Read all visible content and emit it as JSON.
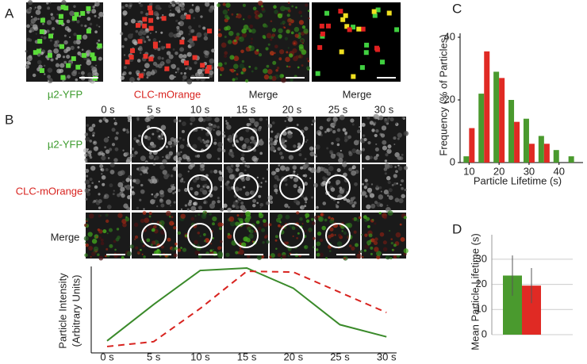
{
  "panel_labels": [
    "A",
    "B",
    "C",
    "D"
  ],
  "panel_a": {
    "labels": [
      "µ2-YFP",
      "CLC-mOrange",
      "Merge",
      "Merge"
    ]
  },
  "panel_b": {
    "times": [
      "0 s",
      "5 s",
      "10 s",
      "15 s",
      "20 s",
      "25 s",
      "30 s"
    ],
    "rows": [
      "µ2-YFP",
      "CLC-mOrange",
      "Merge"
    ]
  },
  "chart_data": [
    {
      "type": "line",
      "ylabel": [
        "Particle Intensity",
        "(Arbitrary Units)"
      ],
      "categories": [
        "0 s",
        "5 s",
        "10 s",
        "15 s",
        "20 s",
        "25 s",
        "30 s"
      ],
      "ylim": [
        0,
        100
      ],
      "series": [
        {
          "color": "#3a8a2a",
          "dash": false,
          "values": [
            10,
            55,
            97,
            100,
            75,
            30,
            15
          ]
        },
        {
          "color": "#d8231f",
          "dash": true,
          "values": [
            3,
            9,
            50,
            96,
            95,
            70,
            45
          ]
        }
      ]
    },
    {
      "type": "bar",
      "ylabel": "Frequency (% of Particles)",
      "xlabel": "Particle Lifetime (s)",
      "x": [
        10,
        15,
        20,
        25,
        30,
        35,
        40,
        45
      ],
      "xlim": [
        7,
        48
      ],
      "xticks": [
        10,
        20,
        30,
        40
      ],
      "ylim": [
        0,
        40
      ],
      "yticks": [
        0,
        20,
        40
      ],
      "grid": false,
      "series": [
        {
          "color": "#4a9a2e",
          "values": [
            2,
            22,
            29,
            20,
            14,
            8.5,
            4,
            2
          ]
        },
        {
          "color": "#e02a24",
          "values": [
            11,
            35.5,
            27,
            13,
            6,
            6,
            0,
            0
          ]
        }
      ]
    },
    {
      "type": "bar",
      "ylabel": "Mean Particle Lifetime (s)",
      "values": [
        23.5,
        19.5
      ],
      "errors": [
        8,
        7
      ],
      "colors": [
        "#4a9a2e",
        "#e02a24"
      ],
      "ylim": [
        0,
        35
      ],
      "yticks": [
        0,
        10,
        20,
        30
      ],
      "grid": true
    }
  ]
}
